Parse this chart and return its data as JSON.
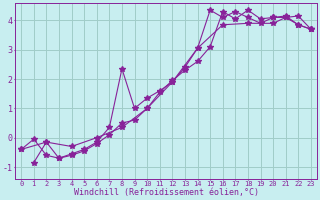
{
  "bg_color": "#c8eef0",
  "grid_color": "#a0ccc8",
  "line_color": "#882299",
  "marker": "*",
  "markersize": 4,
  "linewidth": 0.8,
  "xlim": [
    -0.5,
    23.5
  ],
  "ylim": [
    -1.4,
    4.6
  ],
  "xlabel": "Windchill (Refroidissement éolien,°C)",
  "xlabel_fontsize": 6,
  "xtick_fontsize": 5,
  "ytick_fontsize": 6,
  "yticks": [
    -1,
    0,
    1,
    2,
    3,
    4
  ],
  "xticks": [
    0,
    1,
    2,
    3,
    4,
    5,
    6,
    7,
    8,
    9,
    10,
    11,
    12,
    13,
    14,
    15,
    16,
    17,
    18,
    19,
    20,
    21,
    22,
    23
  ],
  "line1_x": [
    0,
    1,
    2,
    3,
    4,
    5,
    6,
    7,
    8,
    9,
    10,
    11,
    12,
    13,
    14,
    15,
    16,
    17,
    18,
    19,
    20,
    21,
    22,
    23
  ],
  "line1_y": [
    -0.4,
    -0.05,
    -0.6,
    -0.7,
    -0.55,
    -0.4,
    -0.15,
    0.35,
    2.35,
    1.0,
    1.35,
    1.6,
    1.9,
    2.4,
    3.05,
    4.35,
    4.1,
    4.3,
    4.1,
    3.9,
    4.1,
    4.15,
    3.85,
    3.7
  ],
  "line2_x": [
    1,
    2,
    3,
    4,
    5,
    6,
    7,
    8,
    9,
    10,
    11,
    12,
    13,
    14,
    15,
    16,
    17,
    18,
    19,
    20,
    21,
    22,
    23
  ],
  "line2_y": [
    -0.85,
    -0.15,
    -0.7,
    -0.6,
    -0.45,
    -0.2,
    0.1,
    0.5,
    0.6,
    1.0,
    1.55,
    1.95,
    2.3,
    2.6,
    3.1,
    4.3,
    4.05,
    4.35,
    4.05,
    4.1,
    4.1,
    4.15,
    3.7
  ],
  "line3_x": [
    0,
    2,
    4,
    6,
    8,
    10,
    12,
    14,
    16,
    18,
    20,
    21,
    22,
    23
  ],
  "line3_y": [
    -0.4,
    -0.15,
    -0.3,
    -0.0,
    0.35,
    1.0,
    1.9,
    3.05,
    3.85,
    3.9,
    3.9,
    4.1,
    3.85,
    3.7
  ]
}
